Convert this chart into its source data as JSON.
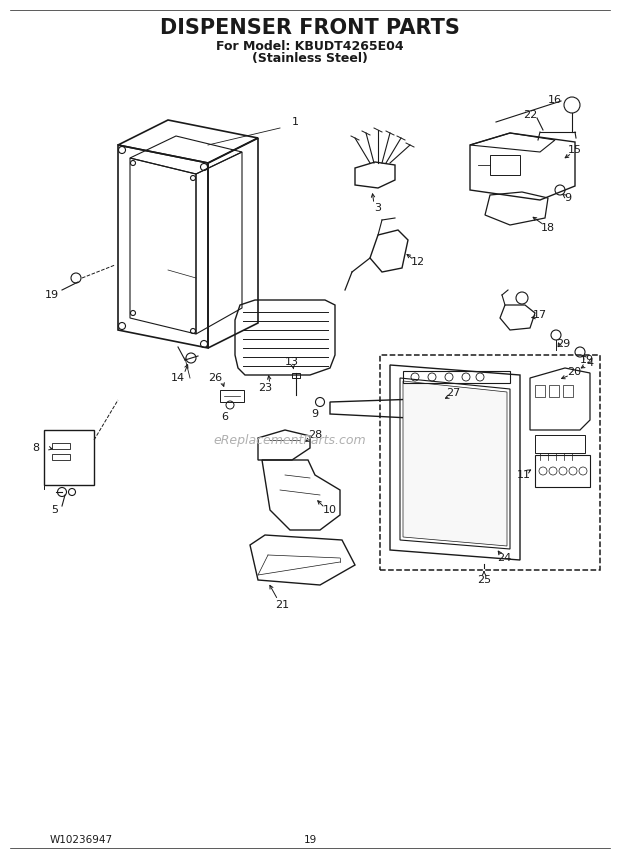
{
  "title_line1": "DISPENSER FRONT PARTS",
  "title_line2": "For Model: KBUDT4265E04",
  "title_line3": "(Stainless Steel)",
  "footer_left": "W10236947",
  "footer_center": "19",
  "bg_color": "#ffffff",
  "line_color": "#1a1a1a",
  "watermark": "eReplacementParts.com",
  "title_fontsize": 15,
  "subtitle_fontsize": 9,
  "label_fontsize": 8,
  "footer_fontsize": 7.5,
  "watermark_fontsize": 9
}
